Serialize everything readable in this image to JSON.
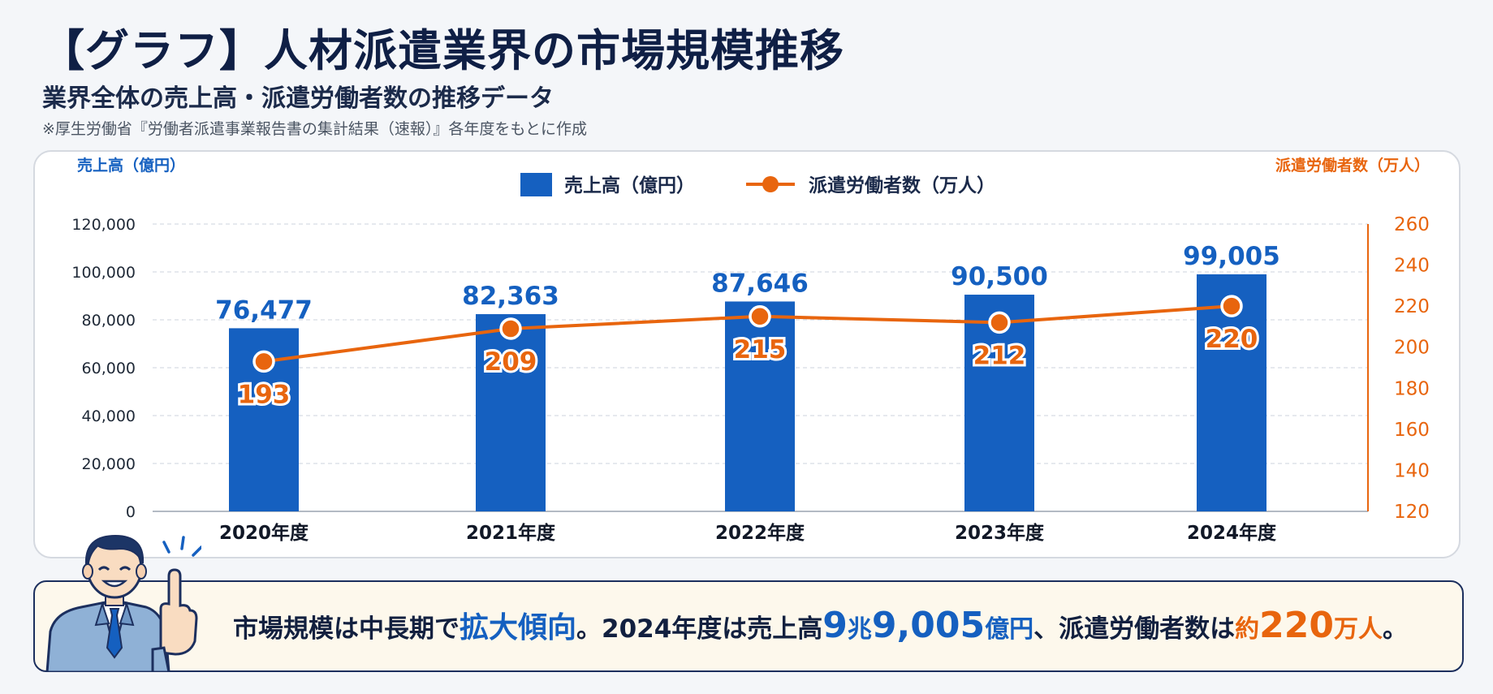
{
  "header": {
    "title": "【グラフ】人材派遣業界の市場規模推移",
    "subtitle": "業界全体の売上高・派遣労働者数の推移データ",
    "source": "※厚生労働省『労働者派遣事業報告書の集計結果（速報）』各年度をもとに作成"
  },
  "chart_data": {
    "type": "bar",
    "categories": [
      "2020年度",
      "2021年度",
      "2022年度",
      "2023年度",
      "2024年度"
    ],
    "series": [
      {
        "name": "売上高（億円）",
        "type": "bar",
        "axis": "left",
        "values": [
          76477,
          82363,
          87646,
          90500,
          99005
        ],
        "labels": [
          "76,477",
          "82,363",
          "87,646",
          "90,500",
          "99,005"
        ],
        "color": "#1560c0"
      },
      {
        "name": "派遣労働者数（万人）",
        "type": "line",
        "axis": "right",
        "values": [
          193,
          209,
          215,
          212,
          220
        ],
        "labels": [
          "193",
          "209",
          "215",
          "212",
          "220"
        ],
        "color": "#e8650e"
      }
    ],
    "y_left": {
      "label": "売上高（億円）",
      "range": [
        0,
        120000
      ],
      "ticks": [
        "0",
        "20,000",
        "40,000",
        "60,000",
        "80,000",
        "100,000",
        "120,000"
      ]
    },
    "y_right": {
      "label": "派遣労働者数（万人）",
      "range": [
        120,
        260
      ],
      "ticks": [
        "120",
        "140",
        "160",
        "180",
        "200",
        "220",
        "240",
        "260"
      ]
    },
    "grid": true,
    "legend": "top-center"
  },
  "summary": {
    "part1": "市場規模は中長期で",
    "highlight1": "拡大傾向",
    "part2": "。2024年度は売上高",
    "num_a": "9",
    "unit_a": "兆",
    "num_b": "9,005",
    "unit_b": "億円",
    "part3": "、派遣労働者数は",
    "approx": "約",
    "num_c": "220",
    "unit_c": "万人",
    "end": "。"
  },
  "colors": {
    "bar": "#1560c0",
    "line": "#e8650e",
    "title": "#0f1f45",
    "summary_border": "#1c2f5e",
    "summary_bg": "#fdf8ec"
  },
  "illustration": "businessman-pointing-icon"
}
